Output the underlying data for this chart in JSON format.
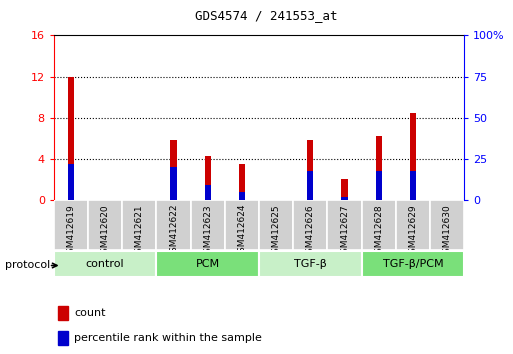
{
  "title": "GDS4574 / 241553_at",
  "samples": [
    "GSM412619",
    "GSM412620",
    "GSM412621",
    "GSM412622",
    "GSM412623",
    "GSM412624",
    "GSM412625",
    "GSM412626",
    "GSM412627",
    "GSM412628",
    "GSM412629",
    "GSM412630"
  ],
  "count_values": [
    12.0,
    0.0,
    0.0,
    5.8,
    4.3,
    3.5,
    0.0,
    5.8,
    2.0,
    6.2,
    8.5,
    0.0
  ],
  "percentile_values": [
    3.5,
    0.0,
    0.0,
    3.2,
    1.5,
    0.8,
    0.0,
    2.8,
    0.3,
    2.8,
    2.8,
    0.0
  ],
  "ylim_left": [
    0,
    16
  ],
  "ylim_right": [
    0,
    100
  ],
  "yticks_left": [
    0,
    4,
    8,
    12,
    16
  ],
  "yticks_right": [
    0,
    25,
    50,
    75,
    100
  ],
  "groups": [
    {
      "label": "control",
      "start": 0,
      "end": 3,
      "color": "#c8f0c8"
    },
    {
      "label": "PCM",
      "start": 3,
      "end": 6,
      "color": "#7ae07a"
    },
    {
      "label": "TGF-β",
      "start": 6,
      "end": 9,
      "color": "#c8f0c8"
    },
    {
      "label": "TGF-β/PCM",
      "start": 9,
      "end": 12,
      "color": "#7ae07a"
    }
  ],
  "bar_width": 0.18,
  "count_color": "#cc0000",
  "percentile_color": "#0000cc",
  "xtick_bg_color": "#d0d0d0",
  "grid_color": "#000000",
  "protocol_label": "protocol"
}
